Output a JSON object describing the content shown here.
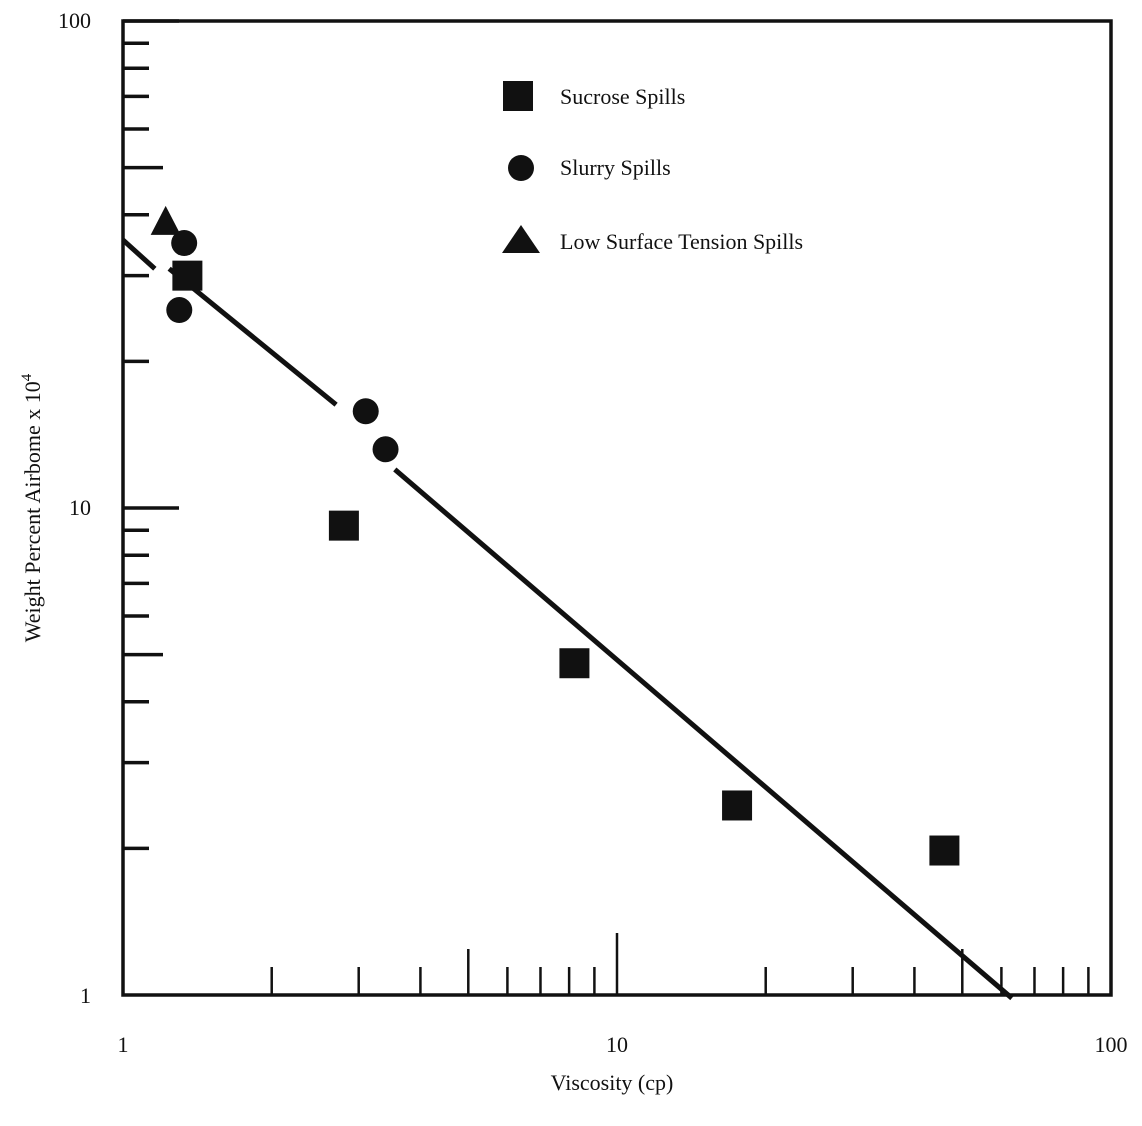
{
  "chart_data": {
    "type": "scatter",
    "title": "",
    "xlabel": "Viscosity (cp)",
    "ylabel_main": "Weight Percent Airbome x 10",
    "ylabel_exp": "4",
    "xscale": "log",
    "yscale": "log",
    "xlim": [
      1,
      100
    ],
    "ylim": [
      1,
      100
    ],
    "x_ticks": [
      "1",
      "10",
      "100"
    ],
    "y_ticks": [
      "1",
      "10",
      "100"
    ],
    "grid": false,
    "legend_position": "top-center",
    "series": [
      {
        "name": "Sucrose Spills",
        "marker": "square",
        "points": [
          {
            "x": 1.35,
            "y": 30.0
          },
          {
            "x": 2.8,
            "y": 9.2
          },
          {
            "x": 8.2,
            "y": 4.8
          },
          {
            "x": 17.5,
            "y": 2.45
          },
          {
            "x": 46.0,
            "y": 1.98
          }
        ]
      },
      {
        "name": "Slurry Spills",
        "marker": "circle",
        "points": [
          {
            "x": 1.33,
            "y": 35.0
          },
          {
            "x": 1.3,
            "y": 25.5
          },
          {
            "x": 3.1,
            "y": 15.8
          },
          {
            "x": 3.4,
            "y": 13.2
          }
        ]
      },
      {
        "name": "Low Surface Tension Spills",
        "marker": "triangle",
        "points": [
          {
            "x": 1.22,
            "y": 38.5
          }
        ]
      }
    ],
    "fit_line": {
      "segments": [
        [
          {
            "x": 1.0,
            "y": 35.5
          },
          {
            "x": 1.16,
            "y": 31.0
          }
        ],
        [
          {
            "x": 1.24,
            "y": 31.0
          },
          {
            "x": 2.7,
            "y": 16.3
          }
        ],
        [
          {
            "x": 3.55,
            "y": 12.0
          },
          {
            "x": 63.0,
            "y": 0.985
          }
        ]
      ]
    },
    "colors": {
      "ink": "#111111",
      "background": "#ffffff"
    }
  }
}
